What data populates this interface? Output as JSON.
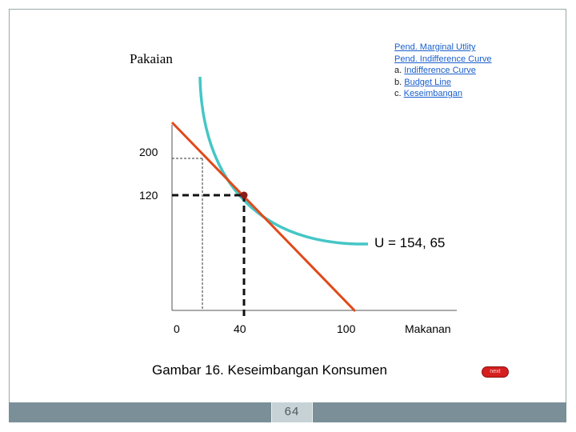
{
  "links": {
    "item1": "Pend. Marginal Utlity",
    "item2": "Pend. Indifference Curve",
    "item3_prefix": "a. ",
    "item3_link": "Indifference Curve",
    "item4_prefix": "b. ",
    "item4_link": "Budget Line",
    "item5_prefix": "c. ",
    "item5_link": "Keseimbangan"
  },
  "chart_data": {
    "type": "line",
    "ylabel": "Pakaian",
    "xlabel": "Makanan",
    "y_ticks": [
      "200",
      "120"
    ],
    "x_ticks": [
      "0",
      "40",
      "100"
    ],
    "equilibrium": {
      "x": 40,
      "y": 120
    },
    "curve_label": "U = 154, 65",
    "colors": {
      "budget_line": "#e04a1a",
      "indifference_curve": "#45c6c6",
      "equilibrium_point": "#8b1a1a"
    }
  },
  "caption": "Gambar 16. Keseimbangan Konsumen",
  "page_number": "64",
  "nav_button_label": "next"
}
